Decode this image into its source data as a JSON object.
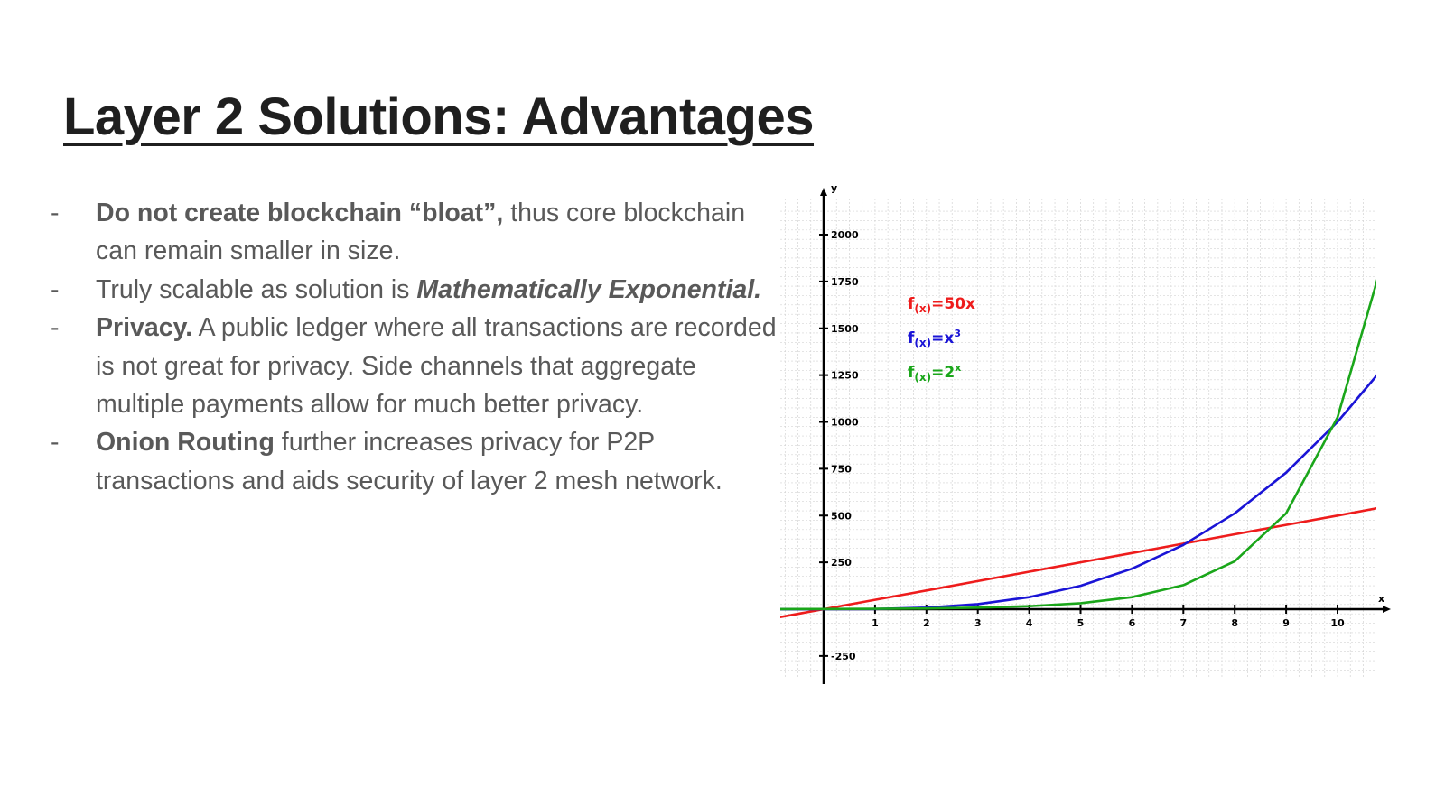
{
  "slide": {
    "title": "Layer 2 Solutions: Advantages",
    "bullets": [
      {
        "dash": "-",
        "parts": [
          {
            "text": "Do not create blockchain “bloat”,",
            "style": "bold"
          },
          {
            "text": " thus core blockchain can remain smaller in size.",
            "style": "normal"
          }
        ]
      },
      {
        "dash": "-",
        "parts": [
          {
            "text": "Truly scalable as solution is ",
            "style": "normal"
          },
          {
            "text": "Mathematically Exponential.",
            "style": "bold-italic"
          }
        ]
      },
      {
        "dash": "-",
        "parts": [
          {
            "text": "Privacy.",
            "style": "bold"
          },
          {
            "text": " A public ledger where all transactions are recorded is not great for privacy. Side channels that aggregate multiple payments allow for much better privacy.",
            "style": "normal"
          }
        ]
      },
      {
        "dash": "-",
        "parts": [
          {
            "text": "Onion Routing",
            "style": "bold"
          },
          {
            "text": " further increases privacy for P2P transactions and aids security of layer 2 mesh network.",
            "style": "normal"
          }
        ]
      }
    ]
  },
  "chart_data": {
    "type": "line",
    "xlabel": "x",
    "ylabel": "y",
    "xlim": [
      -0.85,
      10.8
    ],
    "ylim": [
      -350,
      2200
    ],
    "x_ticks": [
      1,
      2,
      3,
      4,
      5,
      6,
      7,
      8,
      9,
      10
    ],
    "y_ticks": [
      -250,
      250,
      500,
      750,
      1000,
      1250,
      1500,
      1750,
      2000
    ],
    "grid": true,
    "legend_position": "top-left",
    "series": [
      {
        "name": "f(x)=50x",
        "base": "f",
        "sub": "(x)",
        "eq": "=50x",
        "sup": "",
        "color": "#ee1c1c",
        "x": [
          -0.85,
          0,
          1,
          2,
          3,
          4,
          5,
          6,
          7,
          8,
          9,
          10,
          10.8
        ],
        "y": [
          -42.5,
          0,
          50,
          100,
          150,
          200,
          250,
          300,
          350,
          400,
          450,
          500,
          540
        ]
      },
      {
        "name": "f(x)=x3",
        "base": "f",
        "sub": "(x)",
        "eq": "=x",
        "sup": "3",
        "color": "#1a14d6",
        "x": [
          -0.85,
          0,
          1,
          2,
          3,
          4,
          5,
          6,
          7,
          8,
          9,
          10,
          10.8
        ],
        "y": [
          -0.6,
          0,
          1,
          8,
          27,
          64,
          125,
          216,
          343,
          512,
          729,
          1000,
          1259.7
        ]
      },
      {
        "name": "f(x)=2x",
        "base": "f",
        "sub": "(x)",
        "eq": "=2",
        "sup": "x",
        "color": "#1aa61a",
        "x": [
          -0.85,
          0,
          1,
          2,
          3,
          4,
          5,
          6,
          7,
          8,
          9,
          10,
          10.8
        ],
        "y": [
          0.55,
          1,
          2,
          4,
          8,
          16,
          32,
          64,
          128,
          256,
          512,
          1024,
          1782.9
        ]
      }
    ]
  }
}
